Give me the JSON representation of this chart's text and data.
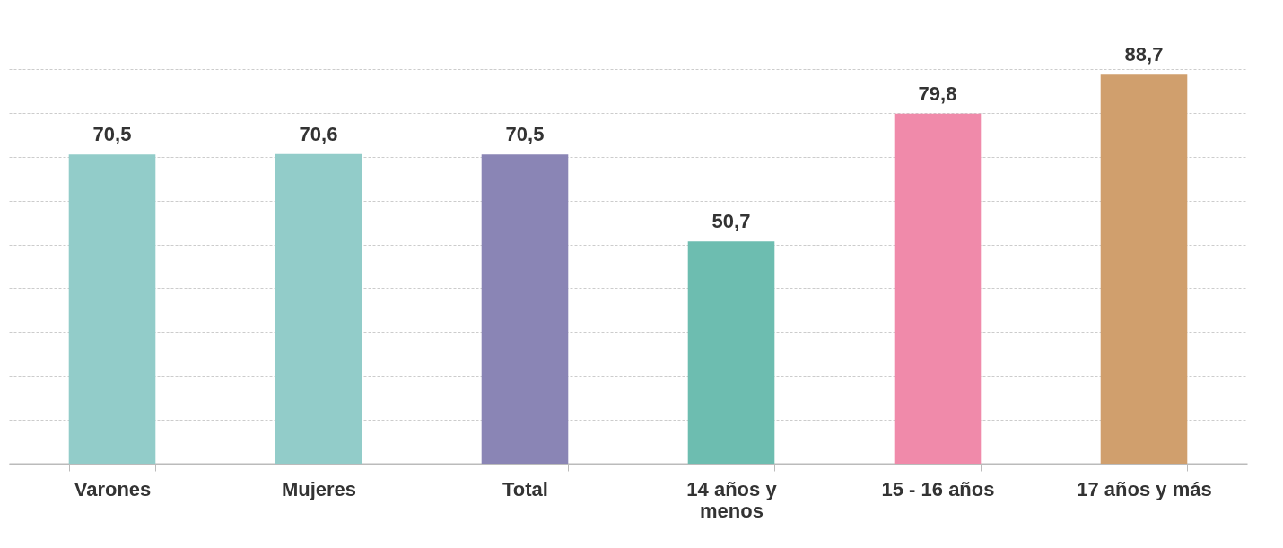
{
  "chart_data": {
    "type": "bar",
    "categories": [
      "Varones",
      "Mujeres",
      "Total",
      "14 años y\nmenos",
      "15 - 16 años",
      "17 años y más"
    ],
    "values": [
      70.5,
      70.6,
      70.5,
      50.7,
      79.8,
      88.7
    ],
    "colors": [
      "#92ccc9",
      "#92ccc9",
      "#8a85b5",
      "#6dbdb0",
      "#f08aaa",
      "#d09f6d"
    ],
    "value_labels": [
      "70,5",
      "70,6",
      "70,5",
      "50,7",
      "79,8",
      "88,7"
    ],
    "ylim": [
      0,
      90
    ],
    "yticks": [
      {
        "value": 0,
        "label": null
      },
      {
        "value": 10,
        "label": null
      },
      {
        "value": 20,
        "label": null
      },
      {
        "value": 30,
        "label": null
      },
      {
        "value": 40,
        "label": null
      },
      {
        "value": 50,
        "label": null
      },
      {
        "value": 60,
        "label": null
      },
      {
        "value": 70,
        "label": null
      },
      {
        "value": 80,
        "label": null
      },
      {
        "value": 90,
        "label": null
      }
    ],
    "grid": "y",
    "tick_labels": "x",
    "legend": false
  }
}
